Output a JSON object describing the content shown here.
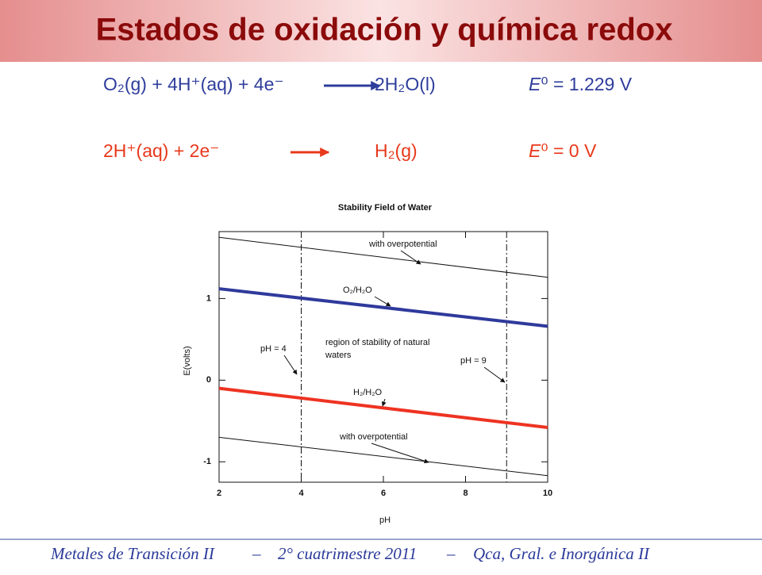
{
  "header": {
    "title": "Estados de oxidación y química redox"
  },
  "equations": [
    {
      "reactants": "O₂(g) + 4H⁺(aq) + 4e⁻",
      "products": "2H₂O(l)",
      "symbol": "E",
      "potential": "⁰ = 1.229 V",
      "color": "#2e3d9b"
    },
    {
      "reactants": "2H⁺(aq) + 2e⁻",
      "products": "H₂(g)",
      "symbol": "E",
      "potential": "⁰ = 0 V",
      "color": "#e8391c"
    }
  ],
  "chart_data": {
    "type": "line",
    "title": "Stability Field of Water",
    "x_label": "pH",
    "y_label": "E(volts)",
    "x": [
      2,
      10
    ],
    "series": [
      {
        "name": "with overpotential",
        "color": "#111111",
        "values": [
          1.75,
          1.26
        ]
      },
      {
        "name": "O₂/H₂O",
        "color": "#2f3a9c",
        "values": [
          1.12,
          0.66
        ]
      },
      {
        "name": "H₂/H₂O",
        "color": "#ee3322",
        "values": [
          -0.1,
          -0.58
        ]
      },
      {
        "name": "with overpotential",
        "color": "#111111",
        "values": [
          -0.7,
          -1.17
        ]
      }
    ],
    "vlines": [
      {
        "value": 4,
        "label": "pH = 4"
      },
      {
        "value": 9,
        "label": "pH = 9"
      }
    ],
    "annotations": [
      "region of stability of natural",
      "waters"
    ],
    "xlim": [
      2,
      10
    ],
    "ylim": [
      -1.25,
      1.82
    ],
    "xticks": [
      2,
      4,
      6,
      8,
      10
    ],
    "yticks": [
      -1,
      0,
      1
    ]
  },
  "footer": {
    "parts": [
      "Metales de Transición II",
      "2° cuatrimestre 2011",
      "Qca, Gral. e Inorgánica II"
    ],
    "separator": "–"
  }
}
